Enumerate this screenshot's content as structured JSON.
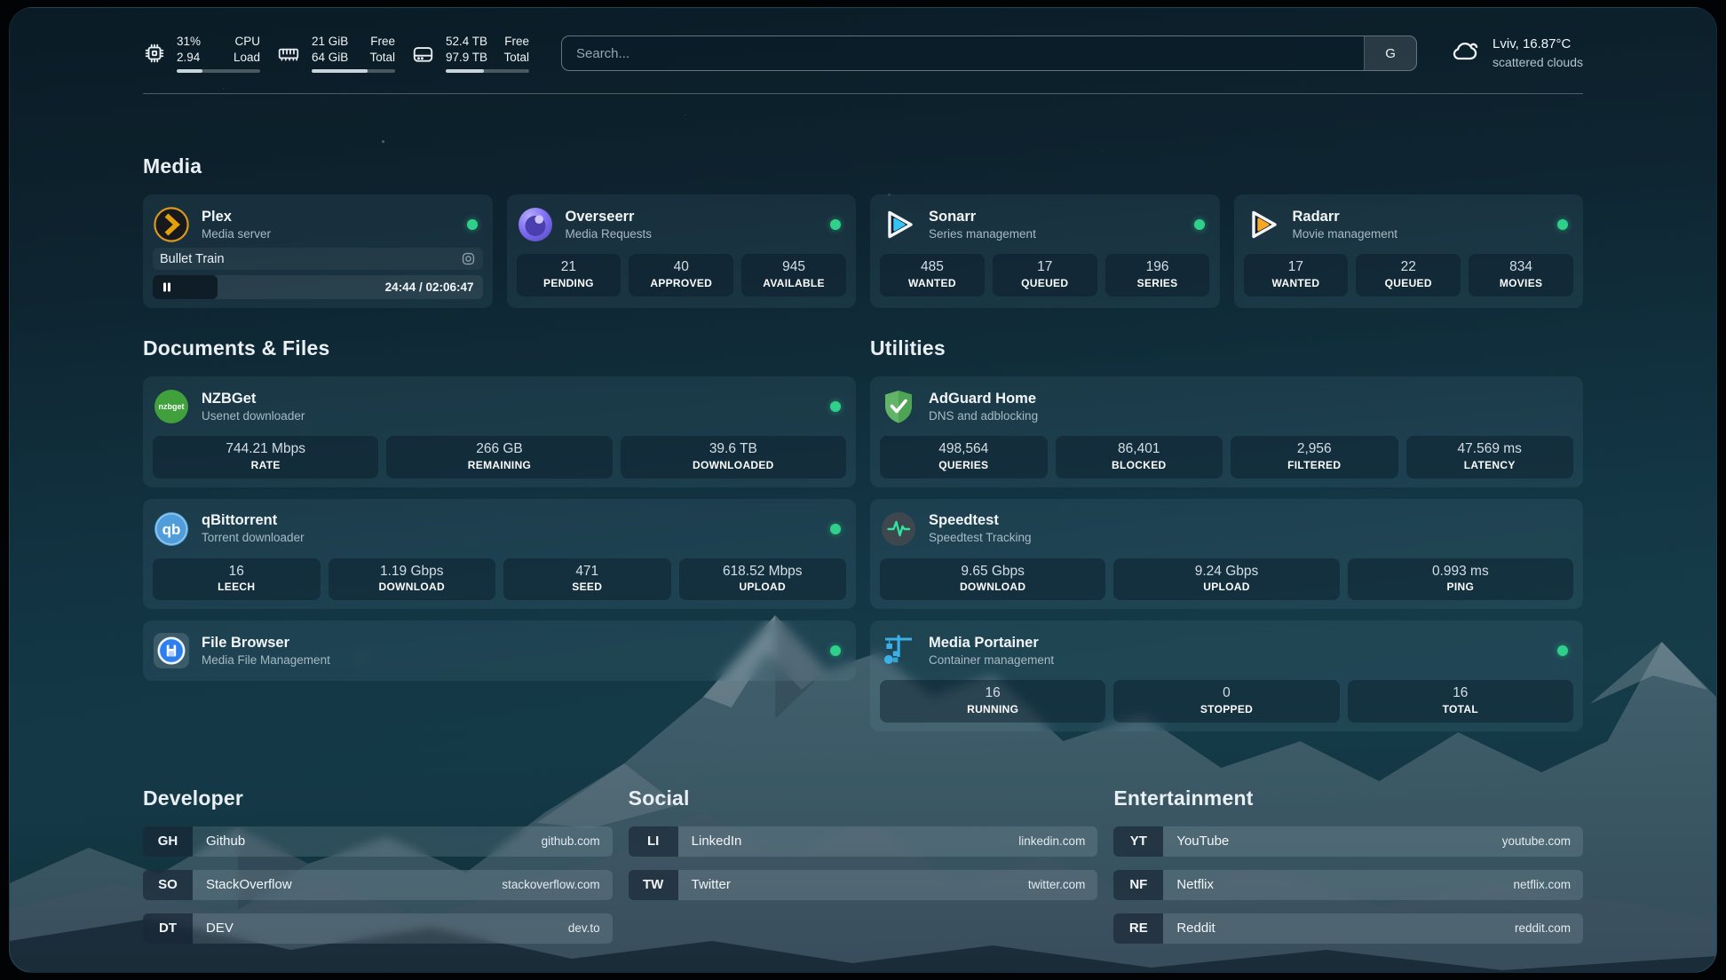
{
  "colors": {
    "status_online": "#2fd089",
    "plex_gold": "#e5a00d",
    "sonarr_blue": "#35c5f4",
    "radarr_orange": "#f7a825",
    "nzbget_green": "#3fa03c",
    "qbittorrent_blue": "#4f9edb",
    "overseerr_purple": "#7d6df2",
    "adguard_green": "#62b468",
    "speedtest_green": "#2ee59d",
    "portainer_blue": "#3bb0e8",
    "filebrowser_blue": "#2d7ff0"
  },
  "topbar": {
    "resources": [
      {
        "icon": "cpu-icon",
        "rows": [
          {
            "value": "31%",
            "label": "CPU"
          },
          {
            "value": "2.94",
            "label": "Load"
          }
        ],
        "usage_percent": 31
      },
      {
        "icon": "memory-icon",
        "rows": [
          {
            "value": "21 GiB",
            "label": "Free"
          },
          {
            "value": "64 GiB",
            "label": "Total"
          }
        ],
        "usage_percent": 67
      },
      {
        "icon": "disk-icon",
        "rows": [
          {
            "value": "52.4 TB",
            "label": "Free"
          },
          {
            "value": "97.9 TB",
            "label": "Total"
          }
        ],
        "usage_percent": 46
      }
    ],
    "search": {
      "placeholder": "Search...",
      "button_label": "G"
    },
    "weather": {
      "icon": "cloud-icon",
      "location_temp": "Lviv, 16.87°C",
      "condition": "scattered clouds"
    }
  },
  "sections": {
    "media": {
      "title": "Media",
      "cards": [
        {
          "name": "Plex",
          "desc": "Media server",
          "icon": "plex-icon",
          "status": "online",
          "media_session": {
            "title": "Bullet Train",
            "state": "paused",
            "time_display": "24:44 / 02:06:47",
            "progress_percent": 19.6
          }
        },
        {
          "name": "Overseerr",
          "desc": "Media Requests",
          "icon": "overseerr-icon",
          "status": "online",
          "stats": [
            {
              "value": "21",
              "label": "PENDING"
            },
            {
              "value": "40",
              "label": "APPROVED"
            },
            {
              "value": "945",
              "label": "AVAILABLE"
            }
          ]
        },
        {
          "name": "Sonarr",
          "desc": "Series management",
          "icon": "sonarr-icon",
          "status": "online",
          "stats": [
            {
              "value": "485",
              "label": "WANTED"
            },
            {
              "value": "17",
              "label": "QUEUED"
            },
            {
              "value": "196",
              "label": "SERIES"
            }
          ]
        },
        {
          "name": "Radarr",
          "desc": "Movie management",
          "icon": "radarr-icon",
          "status": "online",
          "stats": [
            {
              "value": "17",
              "label": "WANTED"
            },
            {
              "value": "22",
              "label": "QUEUED"
            },
            {
              "value": "834",
              "label": "MOVIES"
            }
          ]
        }
      ]
    },
    "documents_files": {
      "title": "Documents & Files",
      "cards": [
        {
          "name": "NZBGet",
          "desc": "Usenet downloader",
          "icon": "nzbget-icon",
          "status": "online",
          "stats": [
            {
              "value": "744.21 Mbps",
              "label": "RATE"
            },
            {
              "value": "266 GB",
              "label": "REMAINING"
            },
            {
              "value": "39.6 TB",
              "label": "DOWNLOADED"
            }
          ]
        },
        {
          "name": "qBittorrent",
          "desc": "Torrent downloader",
          "icon": "qbittorrent-icon",
          "status": "online",
          "stats": [
            {
              "value": "16",
              "label": "LEECH"
            },
            {
              "value": "1.19 Gbps",
              "label": "DOWNLOAD"
            },
            {
              "value": "471",
              "label": "SEED"
            },
            {
              "value": "618.52 Mbps",
              "label": "UPLOAD"
            }
          ]
        },
        {
          "name": "File Browser",
          "desc": "Media File Management",
          "icon": "filebrowser-icon",
          "status": "online",
          "stats": []
        }
      ]
    },
    "utilities": {
      "title": "Utilities",
      "cards": [
        {
          "name": "AdGuard Home",
          "desc": "DNS and adblocking",
          "icon": "adguard-icon",
          "status": null,
          "stats": [
            {
              "value": "498,564",
              "label": "QUERIES"
            },
            {
              "value": "86,401",
              "label": "BLOCKED"
            },
            {
              "value": "2,956",
              "label": "FILTERED"
            },
            {
              "value": "47.569 ms",
              "label": "LATENCY"
            }
          ]
        },
        {
          "name": "Speedtest",
          "desc": "Speedtest Tracking",
          "icon": "speedtest-icon",
          "status": null,
          "stats": [
            {
              "value": "9.65 Gbps",
              "label": "DOWNLOAD"
            },
            {
              "value": "9.24 Gbps",
              "label": "UPLOAD"
            },
            {
              "value": "0.993 ms",
              "label": "PING"
            }
          ]
        },
        {
          "name": "Media Portainer",
          "desc": "Container management",
          "icon": "portainer-icon",
          "status": "online",
          "stats": [
            {
              "value": "16",
              "label": "RUNNING"
            },
            {
              "value": "0",
              "label": "STOPPED"
            },
            {
              "value": "16",
              "label": "TOTAL"
            }
          ]
        }
      ]
    }
  },
  "bookmarks": {
    "groups": [
      {
        "title": "Developer",
        "items": [
          {
            "abbr": "GH",
            "name": "Github",
            "url": "github.com"
          },
          {
            "abbr": "SO",
            "name": "StackOverflow",
            "url": "stackoverflow.com"
          },
          {
            "abbr": "DT",
            "name": "DEV",
            "url": "dev.to"
          }
        ]
      },
      {
        "title": "Social",
        "items": [
          {
            "abbr": "LI",
            "name": "LinkedIn",
            "url": "linkedin.com"
          },
          {
            "abbr": "TW",
            "name": "Twitter",
            "url": "twitter.com"
          }
        ]
      },
      {
        "title": "Entertainment",
        "items": [
          {
            "abbr": "YT",
            "name": "YouTube",
            "url": "youtube.com"
          },
          {
            "abbr": "NF",
            "name": "Netflix",
            "url": "netflix.com"
          },
          {
            "abbr": "RE",
            "name": "Reddit",
            "url": "reddit.com"
          }
        ]
      }
    ]
  }
}
